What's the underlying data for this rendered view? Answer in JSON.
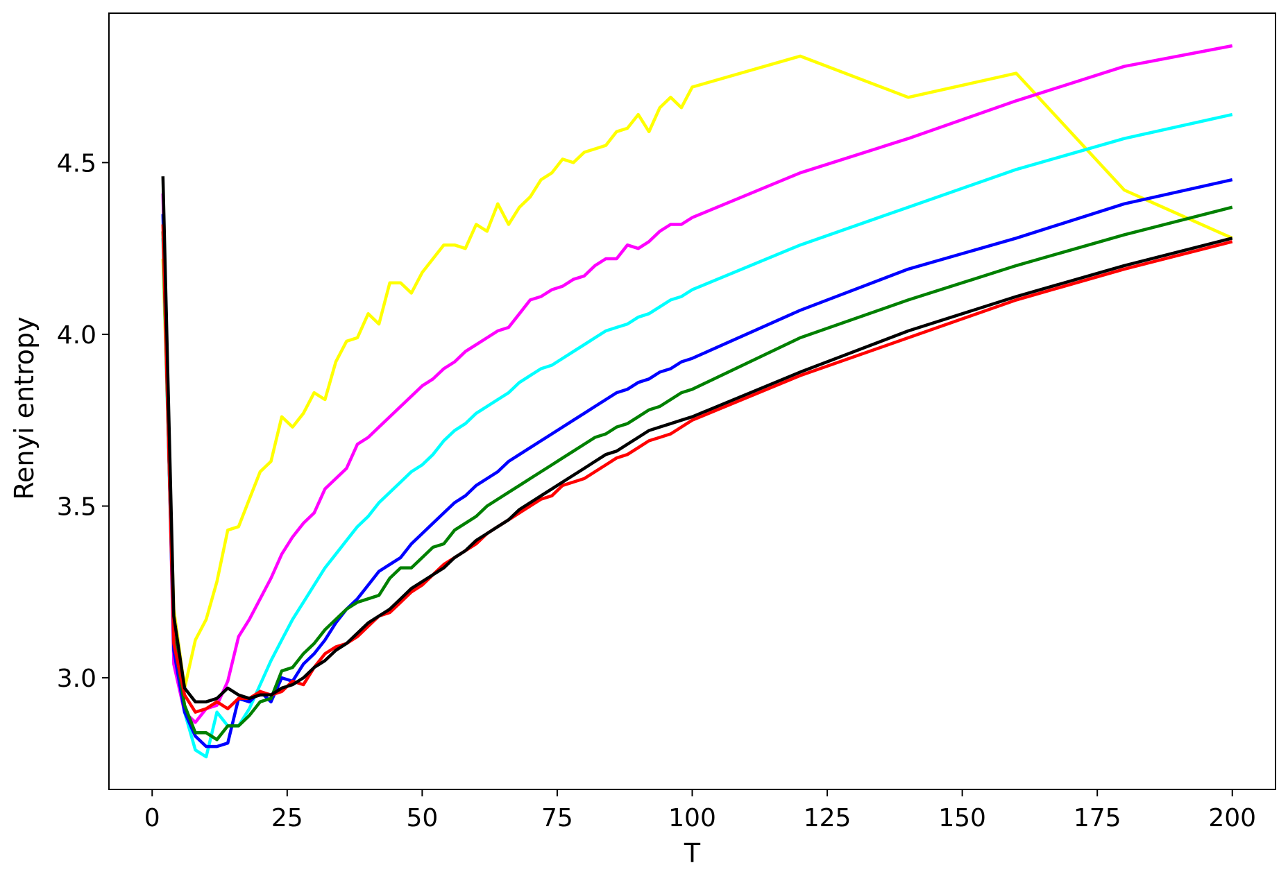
{
  "chart_data": {
    "type": "line",
    "title": "",
    "xlabel": "T",
    "ylabel": "Renyi entropy",
    "xlim": [
      -8,
      208
    ],
    "ylim": [
      2.675,
      4.935
    ],
    "xticks": [
      0,
      25,
      50,
      75,
      100,
      125,
      150,
      175,
      200
    ],
    "xtick_labels": [
      "0",
      "25",
      "50",
      "75",
      "100",
      "125",
      "150",
      "175",
      "200"
    ],
    "yticks": [
      3.0,
      3.5,
      4.0,
      4.5
    ],
    "ytick_labels": [
      "3.0",
      "3.5",
      "4.0",
      "4.5"
    ],
    "grid": false,
    "legend": "none",
    "series": [
      {
        "color": "#ffff00",
        "x": [
          2,
          4,
          6,
          8,
          10,
          12,
          14,
          16,
          18,
          20,
          22,
          24,
          26,
          28,
          30,
          32,
          34,
          36,
          38,
          40,
          42,
          44,
          46,
          48,
          50,
          52,
          54,
          56,
          58,
          60,
          62,
          64,
          66,
          68,
          70,
          72,
          74,
          76,
          78,
          80,
          82,
          84,
          86,
          88,
          90,
          92,
          94,
          96,
          98,
          100,
          120,
          140,
          160,
          180,
          200
        ],
        "y": [
          4.22,
          3.2,
          2.97,
          3.11,
          3.17,
          3.28,
          3.43,
          3.44,
          3.52,
          3.6,
          3.63,
          3.76,
          3.73,
          3.77,
          3.83,
          3.81,
          3.92,
          3.98,
          3.99,
          4.06,
          4.03,
          4.15,
          4.15,
          4.12,
          4.18,
          4.22,
          4.26,
          4.26,
          4.25,
          4.32,
          4.3,
          4.38,
          4.32,
          4.37,
          4.4,
          4.45,
          4.47,
          4.51,
          4.5,
          4.53,
          4.54,
          4.55,
          4.59,
          4.6,
          4.64,
          4.59,
          4.66,
          4.69,
          4.66,
          4.72,
          4.81,
          4.69,
          4.76,
          4.42,
          4.28
        ]
      },
      {
        "color": "#ff00ff",
        "x": [
          2,
          4,
          6,
          8,
          10,
          12,
          14,
          16,
          18,
          20,
          22,
          24,
          26,
          28,
          30,
          32,
          34,
          36,
          38,
          40,
          42,
          44,
          46,
          48,
          50,
          52,
          54,
          56,
          58,
          60,
          62,
          64,
          66,
          68,
          70,
          72,
          74,
          76,
          78,
          80,
          82,
          84,
          86,
          88,
          90,
          92,
          94,
          96,
          98,
          100,
          120,
          140,
          160,
          180,
          200
        ],
        "y": [
          4.41,
          3.04,
          2.9,
          2.87,
          2.91,
          2.92,
          2.99,
          3.12,
          3.17,
          3.23,
          3.29,
          3.36,
          3.41,
          3.45,
          3.48,
          3.55,
          3.58,
          3.61,
          3.68,
          3.7,
          3.73,
          3.76,
          3.79,
          3.82,
          3.85,
          3.87,
          3.9,
          3.92,
          3.95,
          3.97,
          3.99,
          4.01,
          4.02,
          4.06,
          4.1,
          4.11,
          4.13,
          4.14,
          4.16,
          4.17,
          4.2,
          4.22,
          4.22,
          4.26,
          4.25,
          4.27,
          4.3,
          4.32,
          4.32,
          4.34,
          4.47,
          4.57,
          4.68,
          4.78,
          4.84
        ]
      },
      {
        "color": "#00ffff",
        "x": [
          2,
          4,
          6,
          8,
          10,
          12,
          14,
          16,
          18,
          20,
          22,
          24,
          26,
          28,
          30,
          32,
          34,
          36,
          38,
          40,
          42,
          44,
          46,
          48,
          50,
          52,
          54,
          56,
          58,
          60,
          62,
          64,
          66,
          68,
          70,
          72,
          74,
          76,
          78,
          80,
          82,
          84,
          86,
          88,
          90,
          92,
          94,
          96,
          98,
          100,
          120,
          140,
          160,
          180,
          200
        ],
        "y": [
          4.28,
          3.1,
          2.9,
          2.79,
          2.77,
          2.9,
          2.86,
          2.86,
          2.91,
          2.98,
          3.05,
          3.11,
          3.17,
          3.22,
          3.27,
          3.32,
          3.36,
          3.4,
          3.44,
          3.47,
          3.51,
          3.54,
          3.57,
          3.6,
          3.62,
          3.65,
          3.69,
          3.72,
          3.74,
          3.77,
          3.79,
          3.81,
          3.83,
          3.86,
          3.88,
          3.9,
          3.91,
          3.93,
          3.95,
          3.97,
          3.99,
          4.01,
          4.02,
          4.03,
          4.05,
          4.06,
          4.08,
          4.1,
          4.11,
          4.13,
          4.26,
          4.37,
          4.48,
          4.57,
          4.64
        ]
      },
      {
        "color": "#0000ff",
        "x": [
          2,
          4,
          6,
          8,
          10,
          12,
          14,
          16,
          18,
          20,
          22,
          24,
          26,
          28,
          30,
          32,
          34,
          36,
          38,
          40,
          42,
          44,
          46,
          48,
          50,
          52,
          54,
          56,
          58,
          60,
          62,
          64,
          66,
          68,
          70,
          72,
          74,
          76,
          78,
          80,
          82,
          84,
          86,
          88,
          90,
          92,
          94,
          96,
          98,
          100,
          120,
          140,
          160,
          180,
          200
        ],
        "y": [
          4.35,
          3.08,
          2.9,
          2.83,
          2.8,
          2.8,
          2.81,
          2.94,
          2.93,
          2.96,
          2.93,
          3.0,
          2.99,
          3.04,
          3.07,
          3.11,
          3.16,
          3.2,
          3.23,
          3.27,
          3.31,
          3.33,
          3.35,
          3.39,
          3.42,
          3.45,
          3.48,
          3.51,
          3.53,
          3.56,
          3.58,
          3.6,
          3.63,
          3.65,
          3.67,
          3.69,
          3.71,
          3.73,
          3.75,
          3.77,
          3.79,
          3.81,
          3.83,
          3.84,
          3.86,
          3.87,
          3.89,
          3.9,
          3.92,
          3.93,
          4.07,
          4.19,
          4.28,
          4.38,
          4.45
        ]
      },
      {
        "color": "#008000",
        "x": [
          2,
          4,
          6,
          8,
          10,
          12,
          14,
          16,
          18,
          20,
          22,
          24,
          26,
          28,
          30,
          32,
          34,
          36,
          38,
          40,
          42,
          44,
          46,
          48,
          50,
          52,
          54,
          56,
          58,
          60,
          62,
          64,
          66,
          68,
          70,
          72,
          74,
          76,
          78,
          80,
          82,
          84,
          86,
          88,
          90,
          92,
          94,
          96,
          98,
          100,
          120,
          140,
          160,
          180,
          200
        ],
        "y": [
          4.3,
          3.12,
          2.92,
          2.84,
          2.84,
          2.82,
          2.86,
          2.86,
          2.89,
          2.93,
          2.94,
          3.02,
          3.03,
          3.07,
          3.1,
          3.14,
          3.17,
          3.2,
          3.22,
          3.23,
          3.24,
          3.29,
          3.32,
          3.32,
          3.35,
          3.38,
          3.39,
          3.43,
          3.45,
          3.47,
          3.5,
          3.52,
          3.54,
          3.56,
          3.58,
          3.6,
          3.62,
          3.64,
          3.66,
          3.68,
          3.7,
          3.71,
          3.73,
          3.74,
          3.76,
          3.78,
          3.79,
          3.81,
          3.83,
          3.84,
          3.99,
          4.1,
          4.2,
          4.29,
          4.37
        ]
      },
      {
        "color": "#ff0000",
        "x": [
          2,
          4,
          6,
          8,
          10,
          12,
          14,
          16,
          18,
          20,
          22,
          24,
          26,
          28,
          30,
          32,
          34,
          36,
          38,
          40,
          42,
          44,
          46,
          48,
          50,
          52,
          54,
          56,
          58,
          60,
          62,
          64,
          66,
          68,
          70,
          72,
          74,
          76,
          78,
          80,
          82,
          84,
          86,
          88,
          90,
          92,
          94,
          96,
          98,
          100,
          120,
          140,
          160,
          180,
          200
        ],
        "y": [
          4.32,
          3.1,
          2.95,
          2.9,
          2.91,
          2.93,
          2.91,
          2.94,
          2.94,
          2.96,
          2.95,
          2.96,
          2.99,
          2.98,
          3.03,
          3.07,
          3.09,
          3.1,
          3.12,
          3.15,
          3.18,
          3.19,
          3.22,
          3.25,
          3.27,
          3.3,
          3.33,
          3.35,
          3.37,
          3.39,
          3.42,
          3.44,
          3.46,
          3.48,
          3.5,
          3.52,
          3.53,
          3.56,
          3.57,
          3.58,
          3.6,
          3.62,
          3.64,
          3.65,
          3.67,
          3.69,
          3.7,
          3.71,
          3.73,
          3.75,
          3.88,
          3.99,
          4.1,
          4.19,
          4.27
        ]
      },
      {
        "color": "#000000",
        "x": [
          2,
          4,
          6,
          8,
          10,
          12,
          14,
          16,
          18,
          20,
          22,
          24,
          26,
          28,
          30,
          32,
          34,
          36,
          38,
          40,
          42,
          44,
          46,
          48,
          50,
          52,
          54,
          56,
          58,
          60,
          62,
          64,
          66,
          68,
          70,
          72,
          74,
          76,
          78,
          80,
          82,
          84,
          86,
          88,
          90,
          92,
          94,
          96,
          98,
          100,
          120,
          140,
          160,
          180,
          200
        ],
        "y": [
          4.46,
          3.18,
          2.97,
          2.93,
          2.93,
          2.94,
          2.97,
          2.95,
          2.94,
          2.95,
          2.95,
          2.97,
          2.98,
          3.0,
          3.03,
          3.05,
          3.08,
          3.1,
          3.13,
          3.16,
          3.18,
          3.2,
          3.23,
          3.26,
          3.28,
          3.3,
          3.32,
          3.35,
          3.37,
          3.4,
          3.42,
          3.44,
          3.46,
          3.49,
          3.51,
          3.53,
          3.55,
          3.57,
          3.59,
          3.61,
          3.63,
          3.65,
          3.66,
          3.68,
          3.7,
          3.72,
          3.73,
          3.74,
          3.75,
          3.76,
          3.89,
          4.01,
          4.11,
          4.2,
          4.28
        ]
      }
    ]
  }
}
